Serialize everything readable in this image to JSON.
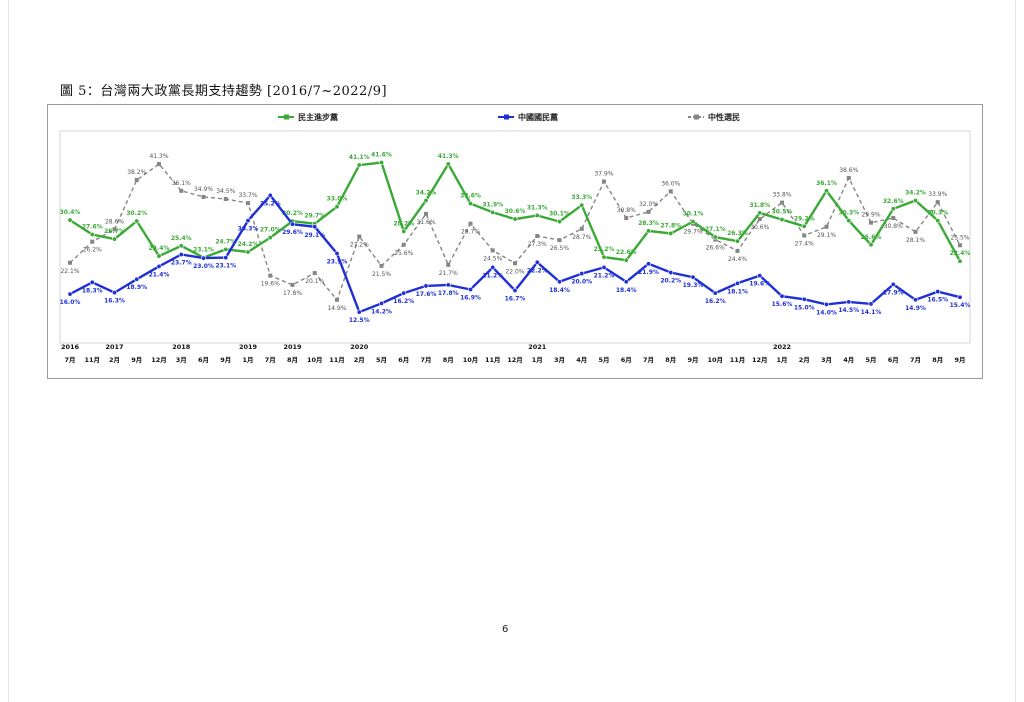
{
  "caption": "圖 5：台灣兩大政黨長期支持趨勢 [2016/7~2022/9]",
  "page_number": "6",
  "chart_data": {
    "type": "line",
    "legend_placement": "top",
    "grid": false,
    "x_months": [
      "7月",
      "11月",
      "2月",
      "9月",
      "12月",
      "3月",
      "6月",
      "9月",
      "1月",
      "7月",
      "8月",
      "10月",
      "11月",
      "2月",
      "5月",
      "6月",
      "7月",
      "8月",
      "10月",
      "11月",
      "12月",
      "1月",
      "3月",
      "4月",
      "5月",
      "6月",
      "7月",
      "8月",
      "9月",
      "10月",
      "11月",
      "12月",
      "1月",
      "2月",
      "3月",
      "4月",
      "5月",
      "6月",
      "7月",
      "8月",
      "9月"
    ],
    "x_years": [
      {
        "index": 0,
        "label": "2016"
      },
      {
        "index": 2,
        "label": "2017"
      },
      {
        "index": 5,
        "label": "2018"
      },
      {
        "index": 8,
        "label": "2019"
      },
      {
        "index": 10,
        "label": "2019"
      },
      {
        "index": 13,
        "label": "2020"
      },
      {
        "index": 21,
        "label": "2021"
      },
      {
        "index": 32,
        "label": "2022"
      }
    ],
    "ylim": [
      10,
      45
    ],
    "series": [
      {
        "name": "民主進步黨",
        "color": "#3aa935",
        "values": [
          30.4,
          27.6,
          26.7,
          30.2,
          23.4,
          25.4,
          23.1,
          24.7,
          24.2,
          27.0,
          30.2,
          29.7,
          33.0,
          41.1,
          41.6,
          28.2,
          34.2,
          41.3,
          33.6,
          31.9,
          30.6,
          31.3,
          30.1,
          33.3,
          23.2,
          22.6,
          28.3,
          27.8,
          30.1,
          27.1,
          26.3,
          31.8,
          30.5,
          29.2,
          36.1,
          30.3,
          25.6,
          32.6,
          34.2,
          30.3,
          22.4
        ],
        "labels": [
          "30.4%",
          "27.6%",
          "26.7%",
          "30.2%",
          "23.4%",
          "25.4%",
          "23.1%",
          "24.7%",
          "24.2%",
          "27.0%",
          "30.2%",
          "29.7%",
          "33.0%",
          "41.1%",
          "41.6%",
          "28.2%",
          "34.2%",
          "41.3%",
          "33.6%",
          "31.9%",
          "30.6%",
          "31.3%",
          "30.1%",
          "33.3%",
          "23.2%",
          "22.6%",
          "28.3%",
          "27.8%",
          "30.1%",
          "27.1%",
          "26.3%",
          "31.8%",
          "30.5%",
          "29.2%",
          "36.1%",
          "30.3%",
          "25.6%",
          "32.6%",
          "34.2%",
          "30.3%",
          "22.4%"
        ]
      },
      {
        "name": "中國國民黨",
        "color": "#1f2fd6",
        "values": [
          16.0,
          18.3,
          16.3,
          18.9,
          21.4,
          23.7,
          23.0,
          23.1,
          30.3,
          35.2,
          29.6,
          29.1,
          23.9,
          12.5,
          14.2,
          16.2,
          17.6,
          17.8,
          16.9,
          21.2,
          16.7,
          22.2,
          18.4,
          20.0,
          21.2,
          18.4,
          21.9,
          20.2,
          19.3,
          16.2,
          18.1,
          19.6,
          15.6,
          15.0,
          14.0,
          14.5,
          14.1,
          17.9,
          14.9,
          16.5,
          15.4
        ],
        "labels": [
          "16.0%",
          "18.3%",
          "16.3%",
          "18.9%",
          "21.4%",
          "23.7%",
          "23.0%",
          "23.1%",
          "30.3%",
          "35.2%",
          "29.6%",
          "29.1%",
          "23.9%",
          "12.5%",
          "14.2%",
          "16.2%",
          "17.6%",
          "17.8%",
          "16.9%",
          "21.2%",
          "16.7%",
          "22.2%",
          "18.4%",
          "20.0%",
          "21.2%",
          "18.4%",
          "21.9%",
          "20.2%",
          "19.3%",
          "16.2%",
          "18.1%",
          "19.6%",
          "15.6%",
          "15.0%",
          "14.0%",
          "14.5%",
          "14.1%",
          "17.9%",
          "14.9%",
          "16.5%",
          "15.4%"
        ]
      },
      {
        "name": "中性選民",
        "color": "#858585",
        "dashed": true,
        "values": [
          22.1,
          26.2,
          28.6,
          38.2,
          41.3,
          36.1,
          34.9,
          34.5,
          33.7,
          19.6,
          17.8,
          20.1,
          14.9,
          27.2,
          21.5,
          25.6,
          31.6,
          21.7,
          29.7,
          24.5,
          22.0,
          27.3,
          26.5,
          28.7,
          37.9,
          30.8,
          32.0,
          36.0,
          29.7,
          26.6,
          24.4,
          30.6,
          33.8,
          27.4,
          29.1,
          38.6,
          29.9,
          30.8,
          28.1,
          33.9,
          25.5
        ],
        "labels": [
          "22.1%",
          "26.2%",
          "28.6%",
          "38.2%",
          "41.3%",
          "36.1%",
          "34.9%",
          "34.5%",
          "33.7%",
          "19.6%",
          "17.8%",
          "20.1%",
          "14.9%",
          "27.2%",
          "21.5%",
          "25.6%",
          "31.6%",
          "21.7%",
          "29.7%",
          "24.5%",
          "22.0%",
          "27.3%",
          "26.5%",
          "28.7%",
          "37.9%",
          "30.8%",
          "32.0%",
          "36.0%",
          "29.7%",
          "26.6%",
          "24.4%",
          "30.6%",
          "33.8%",
          "27.4%",
          "29.1%",
          "38.6%",
          "29.9%",
          "30.8%",
          "28.1%",
          "33.9%",
          "25.5%"
        ]
      }
    ]
  }
}
